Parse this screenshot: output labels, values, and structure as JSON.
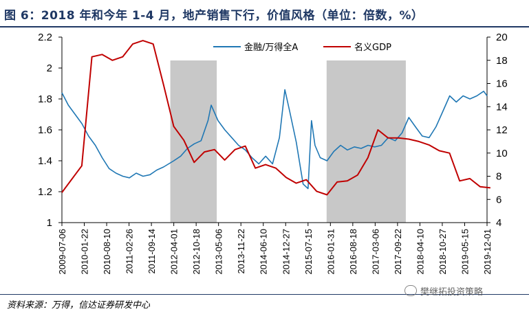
{
  "title": "图 6：2018 年和今年 1-4 月，地产销售下行，价值风格（单位：倍数，%）",
  "source": "资料来源：万得，信达证券研发中心",
  "watermark": "樊继拓投资策略",
  "colors": {
    "series1": "#1f77b4",
    "series2": "#c00000",
    "shade": "#c8c8c8",
    "title": "#1f3864"
  },
  "chart_data": {
    "type": "line",
    "legend": {
      "position": "top-center"
    },
    "y_left": {
      "range": [
        1,
        2.2
      ],
      "ticks": [
        "1",
        "1.2",
        "1.4",
        "1.6",
        "1.8",
        "2",
        "2.2"
      ]
    },
    "y_right": {
      "range": [
        4,
        20
      ],
      "ticks": [
        "4",
        "6",
        "8",
        "10",
        "12",
        "14",
        "16",
        "18",
        "20"
      ]
    },
    "x_ticks": [
      "2009-07-06",
      "2010-01-22",
      "2010-08-10",
      "2011-02-26",
      "2011-09-14",
      "2012-04-01",
      "2012-10-18",
      "2013-05-06",
      "2013-11-22",
      "2014-06-10",
      "2014-12-27",
      "2015-07-15",
      "2016-01-31",
      "2016-08-18",
      "2017-03-06",
      "2017-09-22",
      "2018-04-10",
      "2018-10-27",
      "2019-05-15",
      "2019-12-01"
    ],
    "shaded_periods": [
      [
        "2012-03-01",
        "2013-04-20"
      ],
      [
        "2015-12-28",
        "2017-12-05"
      ]
    ],
    "series": [
      {
        "name": "金融/万得全A",
        "axis": "left",
        "points": [
          [
            "2009-07-06",
            1.84
          ],
          [
            "2009-09-01",
            1.76
          ],
          [
            "2009-11-01",
            1.7
          ],
          [
            "2010-01-01",
            1.64
          ],
          [
            "2010-03-01",
            1.56
          ],
          [
            "2010-05-01",
            1.5
          ],
          [
            "2010-07-01",
            1.42
          ],
          [
            "2010-09-01",
            1.35
          ],
          [
            "2010-11-01",
            1.32
          ],
          [
            "2011-01-01",
            1.3
          ],
          [
            "2011-03-01",
            1.29
          ],
          [
            "2011-05-01",
            1.32
          ],
          [
            "2011-07-01",
            1.3
          ],
          [
            "2011-09-01",
            1.31
          ],
          [
            "2011-11-01",
            1.34
          ],
          [
            "2012-01-01",
            1.36
          ],
          [
            "2012-04-01",
            1.4
          ],
          [
            "2012-06-01",
            1.43
          ],
          [
            "2012-08-01",
            1.48
          ],
          [
            "2012-10-01",
            1.51
          ],
          [
            "2012-12-01",
            1.53
          ],
          [
            "2013-02-01",
            1.66
          ],
          [
            "2013-03-01",
            1.76
          ],
          [
            "2013-05-01",
            1.66
          ],
          [
            "2013-07-01",
            1.6
          ],
          [
            "2013-09-01",
            1.55
          ],
          [
            "2013-11-01",
            1.5
          ],
          [
            "2014-01-01",
            1.47
          ],
          [
            "2014-03-01",
            1.42
          ],
          [
            "2014-05-01",
            1.38
          ],
          [
            "2014-07-01",
            1.43
          ],
          [
            "2014-09-01",
            1.38
          ],
          [
            "2014-11-01",
            1.55
          ],
          [
            "2014-12-20",
            1.86
          ],
          [
            "2015-02-01",
            1.72
          ],
          [
            "2015-04-01",
            1.52
          ],
          [
            "2015-06-01",
            1.25
          ],
          [
            "2015-07-15",
            1.22
          ],
          [
            "2015-08-15",
            1.66
          ],
          [
            "2015-09-15",
            1.5
          ],
          [
            "2015-11-01",
            1.42
          ],
          [
            "2016-01-01",
            1.4
          ],
          [
            "2016-03-01",
            1.46
          ],
          [
            "2016-05-01",
            1.5
          ],
          [
            "2016-07-01",
            1.47
          ],
          [
            "2016-09-01",
            1.49
          ],
          [
            "2016-11-01",
            1.48
          ],
          [
            "2017-01-01",
            1.5
          ],
          [
            "2017-03-01",
            1.49
          ],
          [
            "2017-05-01",
            1.5
          ],
          [
            "2017-07-01",
            1.55
          ],
          [
            "2017-09-01",
            1.53
          ],
          [
            "2017-11-01",
            1.58
          ],
          [
            "2018-01-01",
            1.68
          ],
          [
            "2018-03-01",
            1.62
          ],
          [
            "2018-05-01",
            1.56
          ],
          [
            "2018-07-01",
            1.55
          ],
          [
            "2018-09-01",
            1.62
          ],
          [
            "2018-11-01",
            1.72
          ],
          [
            "2019-01-01",
            1.82
          ],
          [
            "2019-03-01",
            1.78
          ],
          [
            "2019-05-01",
            1.82
          ],
          [
            "2019-07-01",
            1.8
          ],
          [
            "2019-09-01",
            1.82
          ],
          [
            "2019-11-01",
            1.85
          ],
          [
            "2019-12-01",
            1.82
          ]
        ]
      },
      {
        "name": "名义GDP",
        "axis": "right",
        "points": [
          [
            "2009-07-06",
            6.6
          ],
          [
            "2009-12-31",
            8.9
          ],
          [
            "2010-03-31",
            18.3
          ],
          [
            "2010-06-30",
            18.5
          ],
          [
            "2010-09-30",
            18.0
          ],
          [
            "2010-12-31",
            18.3
          ],
          [
            "2011-03-31",
            19.4
          ],
          [
            "2011-06-30",
            19.7
          ],
          [
            "2011-09-30",
            19.4
          ],
          [
            "2011-12-31",
            15.9
          ],
          [
            "2012-03-31",
            12.3
          ],
          [
            "2012-06-30",
            11.1
          ],
          [
            "2012-09-30",
            9.2
          ],
          [
            "2012-12-31",
            10.1
          ],
          [
            "2013-03-31",
            10.3
          ],
          [
            "2013-06-30",
            9.4
          ],
          [
            "2013-09-30",
            10.3
          ],
          [
            "2013-12-31",
            10.6
          ],
          [
            "2014-03-31",
            8.7
          ],
          [
            "2014-06-30",
            9.0
          ],
          [
            "2014-09-30",
            8.7
          ],
          [
            "2014-12-31",
            7.9
          ],
          [
            "2015-03-31",
            7.4
          ],
          [
            "2015-06-30",
            7.7
          ],
          [
            "2015-09-30",
            6.7
          ],
          [
            "2015-12-31",
            6.4
          ],
          [
            "2016-03-31",
            7.5
          ],
          [
            "2016-06-30",
            7.6
          ],
          [
            "2016-09-30",
            8.1
          ],
          [
            "2016-12-31",
            9.6
          ],
          [
            "2017-03-31",
            12.0
          ],
          [
            "2017-06-30",
            11.3
          ],
          [
            "2017-09-30",
            11.3
          ],
          [
            "2017-12-31",
            11.2
          ],
          [
            "2018-03-31",
            11.0
          ],
          [
            "2018-06-30",
            10.7
          ],
          [
            "2018-09-30",
            10.2
          ],
          [
            "2018-12-31",
            10.0
          ],
          [
            "2019-03-31",
            7.6
          ],
          [
            "2019-06-30",
            7.8
          ],
          [
            "2019-09-30",
            7.1
          ],
          [
            "2019-12-31",
            7.0
          ]
        ]
      }
    ]
  }
}
